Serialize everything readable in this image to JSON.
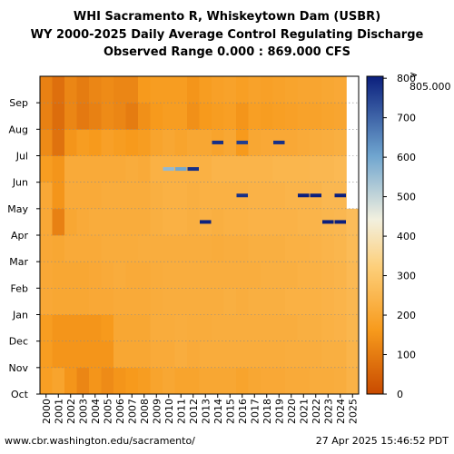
{
  "title": {
    "line1": "WHI Sacramento R, Whiskeytown Dam (USBR)",
    "line2": "WY 2000-2025 Daily Average Control Regulating Discharge",
    "line3": "Observed Range 0.000 : 869.000 CFS"
  },
  "footer": {
    "left": "www.cbr.washington.edu/sacramento/",
    "right": "27 Apr 2025 15:46:52 PDT"
  },
  "chart_data": {
    "type": "heatmap",
    "title": "WHI Sacramento R, Whiskeytown Dam (USBR) WY 2000-2025 Daily Average Control Regulating Discharge",
    "x": [
      "2000",
      "2001",
      "2002",
      "2003",
      "2004",
      "2005",
      "2006",
      "2007",
      "2008",
      "2009",
      "2010",
      "2011",
      "2012",
      "2013",
      "2014",
      "2015",
      "2016",
      "2017",
      "2018",
      "2019",
      "2020",
      "2021",
      "2022",
      "2023",
      "2024",
      "2025"
    ],
    "y_months": [
      "Oct",
      "Nov",
      "Dec",
      "Jan",
      "Feb",
      "Mar",
      "Apr",
      "May",
      "Jun",
      "Jul",
      "Aug",
      "Sep"
    ],
    "units": "CFS",
    "observed_range": [
      0.0,
      869.0
    ],
    "colorbar": {
      "ticks": [
        0,
        100,
        200,
        300,
        400,
        500,
        600,
        700,
        800
      ],
      "max_label": "> 805.000",
      "range": [
        0,
        805
      ],
      "colors": [
        "#c84a00",
        "#f79a1c",
        "#fdcf7a",
        "#f2f0df",
        "#6fa5cf",
        "#0b1f7d"
      ]
    },
    "monthly_typical": {
      "2000": [
        175,
        170,
        170,
        205,
        205,
        205,
        205,
        205,
        170,
        130,
        110,
        110
      ],
      "2001": [
        190,
        150,
        150,
        200,
        200,
        200,
        110,
        150,
        150,
        80,
        70,
        75
      ],
      "2002": [
        150,
        150,
        150,
        200,
        200,
        210,
        200,
        210,
        210,
        150,
        120,
        120
      ],
      "2003": [
        120,
        150,
        150,
        200,
        200,
        210,
        210,
        210,
        210,
        170,
        95,
        100
      ],
      "2004": [
        150,
        150,
        150,
        205,
        205,
        210,
        215,
        210,
        210,
        160,
        110,
        120
      ],
      "2005": [
        130,
        150,
        160,
        205,
        210,
        215,
        215,
        215,
        210,
        180,
        130,
        130
      ],
      "2006": [
        150,
        200,
        200,
        210,
        215,
        215,
        215,
        215,
        210,
        170,
        120,
        120
      ],
      "2007": [
        160,
        200,
        200,
        210,
        210,
        215,
        215,
        215,
        215,
        160,
        100,
        120
      ],
      "2008": [
        170,
        200,
        200,
        210,
        210,
        220,
        215,
        215,
        210,
        170,
        140,
        160
      ],
      "2009": [
        190,
        210,
        215,
        215,
        215,
        220,
        225,
        225,
        230,
        190,
        160,
        170
      ],
      "2010": [
        200,
        210,
        215,
        220,
        220,
        220,
        230,
        230,
        230,
        200,
        170,
        170
      ],
      "2011": [
        190,
        220,
        220,
        220,
        220,
        220,
        230,
        230,
        230,
        190,
        170,
        170
      ],
      "2012": [
        190,
        210,
        215,
        220,
        220,
        220,
        225,
        225,
        230,
        200,
        140,
        150
      ],
      "2013": [
        200,
        215,
        215,
        220,
        220,
        220,
        230,
        230,
        230,
        200,
        160,
        170
      ],
      "2014": [
        200,
        215,
        220,
        220,
        220,
        215,
        225,
        230,
        240,
        190,
        170,
        180
      ],
      "2015": [
        200,
        215,
        220,
        225,
        220,
        220,
        230,
        230,
        240,
        200,
        175,
        185
      ],
      "2016": [
        190,
        215,
        220,
        220,
        220,
        220,
        230,
        230,
        240,
        160,
        150,
        175
      ],
      "2017": [
        200,
        215,
        220,
        225,
        220,
        225,
        235,
        235,
        240,
        200,
        175,
        185
      ],
      "2018": [
        205,
        215,
        220,
        225,
        225,
        225,
        235,
        235,
        240,
        205,
        170,
        180
      ],
      "2019": [
        205,
        215,
        220,
        225,
        225,
        225,
        235,
        235,
        245,
        205,
        175,
        185
      ],
      "2020": [
        210,
        220,
        220,
        230,
        225,
        230,
        235,
        240,
        245,
        205,
        180,
        190
      ],
      "2021": [
        210,
        220,
        225,
        230,
        230,
        230,
        240,
        240,
        245,
        210,
        185,
        195
      ],
      "2022": [
        215,
        220,
        225,
        230,
        230,
        235,
        240,
        240,
        250,
        215,
        185,
        195
      ],
      "2023": [
        215,
        225,
        230,
        235,
        235,
        240,
        245,
        250,
        250,
        220,
        190,
        200
      ],
      "2024": [
        220,
        225,
        235,
        240,
        240,
        245,
        250,
        250,
        255,
        225,
        195,
        205
      ],
      "2025": [
        235,
        240,
        245,
        250,
        255,
        260,
        265,
        null,
        null,
        null,
        null,
        null
      ]
    },
    "annotations_high_flow": [
      {
        "year": "2010",
        "month": "Jun",
        "value": 560
      },
      {
        "year": "2011",
        "month": "Jun",
        "value": 600
      },
      {
        "year": "2012",
        "month": "Jun",
        "value": 780
      },
      {
        "year": "2013",
        "month": "Apr",
        "value": 800
      },
      {
        "year": "2014",
        "month": "Jul",
        "value": 780
      },
      {
        "year": "2016",
        "month": "May",
        "value": 780
      },
      {
        "year": "2016",
        "month": "Jul",
        "value": 760
      },
      {
        "year": "2019",
        "month": "Jul",
        "value": 780
      },
      {
        "year": "2021",
        "month": "May",
        "value": 805
      },
      {
        "year": "2022",
        "month": "May",
        "value": 805
      },
      {
        "year": "2023",
        "month": "Apr",
        "value": 805
      },
      {
        "year": "2024",
        "month": "Apr",
        "value": 805
      },
      {
        "year": "2024",
        "month": "May",
        "value": 805
      }
    ]
  }
}
